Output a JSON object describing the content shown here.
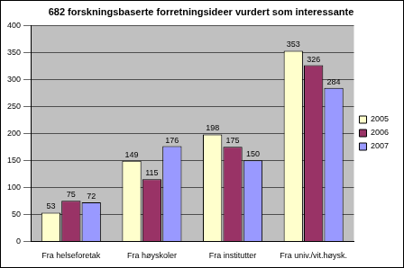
{
  "chart_data": {
    "type": "bar",
    "title": "682 forskningsbaserte forretningsideer vurdert som interessante",
    "categories": [
      "Fra helseforetak",
      "Fra høyskoler",
      "Fra institutter",
      "Fra univ./vit.høysk."
    ],
    "series": [
      {
        "name": "2005",
        "color": "#ffffcc",
        "values": [
          53,
          149,
          198,
          353
        ]
      },
      {
        "name": "2006",
        "color": "#993366",
        "values": [
          75,
          115,
          175,
          326
        ]
      },
      {
        "name": "2007",
        "color": "#9999ff",
        "values": [
          72,
          176,
          150,
          284
        ]
      }
    ],
    "ylim": [
      0,
      400
    ],
    "yticks": [
      0,
      50,
      100,
      150,
      200,
      250,
      300,
      350,
      400
    ],
    "grid": true,
    "legend": "right",
    "data_labels": true
  }
}
